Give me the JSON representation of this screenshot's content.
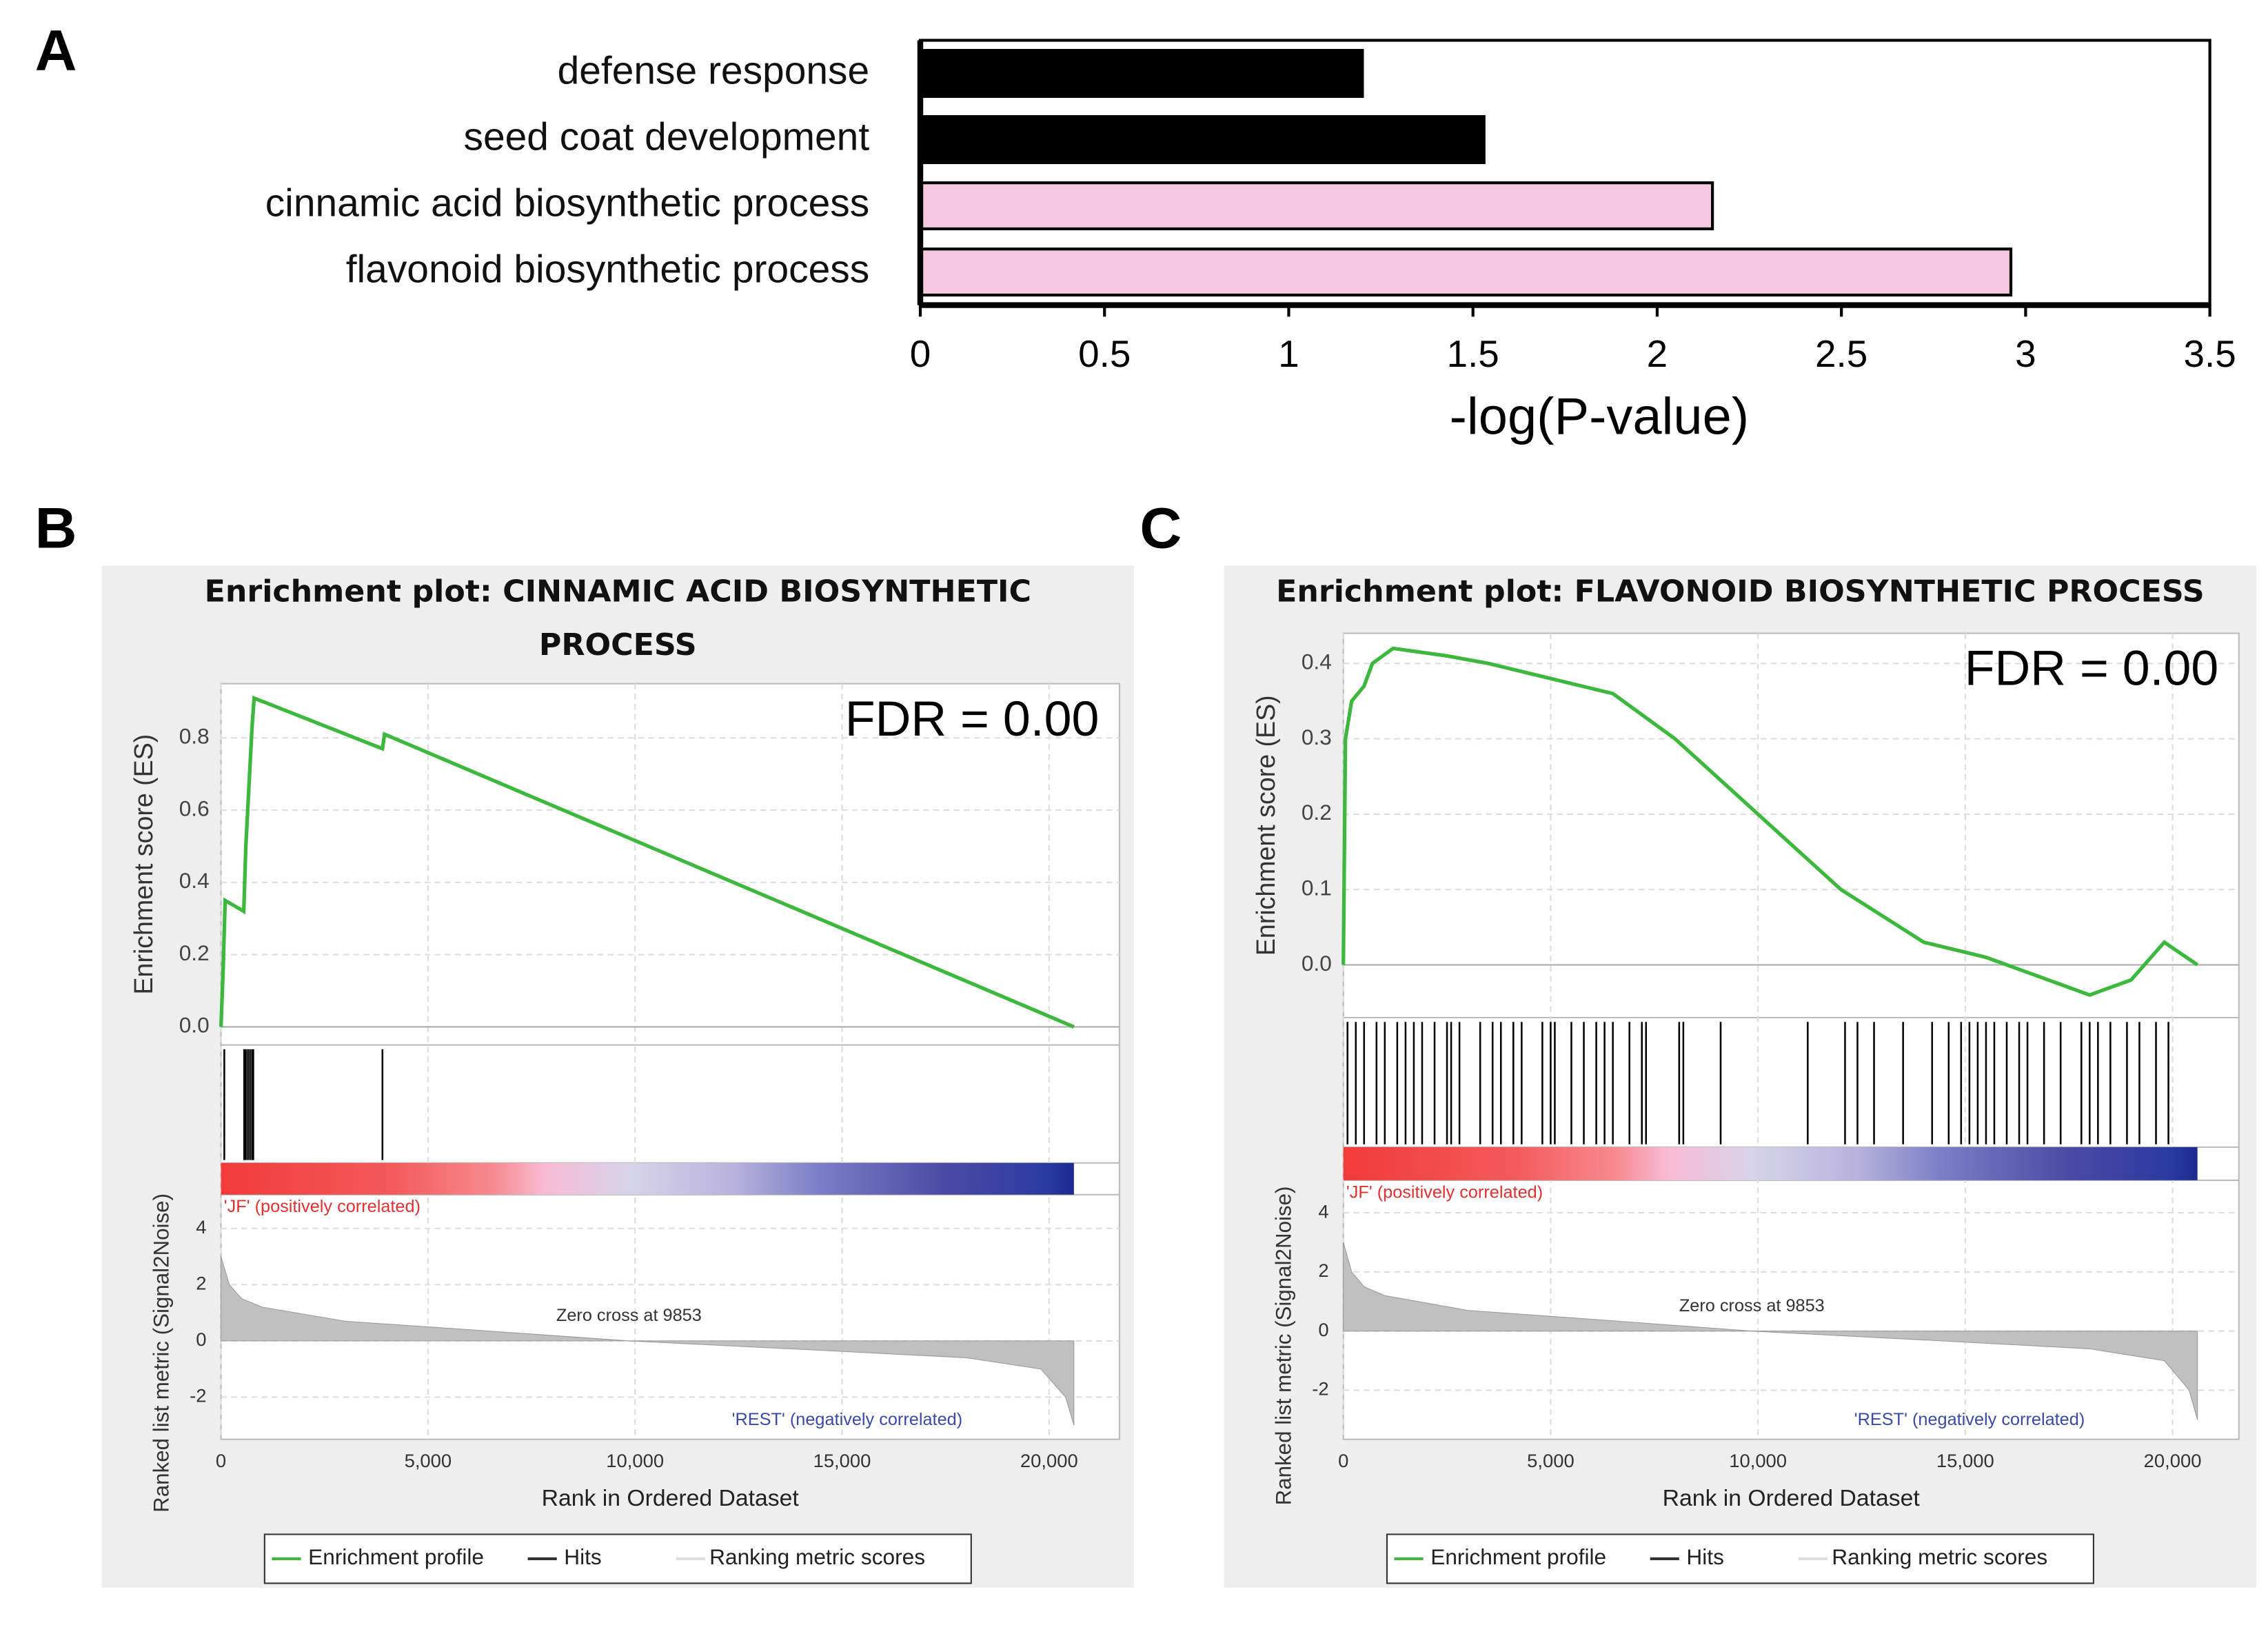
{
  "chart_data": [
    {
      "type": "bar",
      "panel": "A",
      "orientation": "horizontal",
      "categories": [
        "defense response",
        "seed coat development",
        "cinnamic acid biosynthetic process",
        "flavonoid biosynthetic process"
      ],
      "values": [
        1.2,
        1.53,
        2.15,
        2.96
      ],
      "colors": [
        "#000000",
        "#000000",
        "#f4c8e0",
        "#f4c8e0"
      ],
      "x_label": "-log(P-value)",
      "xlim": [
        0,
        3.5
      ],
      "xticks": [
        0,
        0.5,
        1,
        1.5,
        2,
        2.5,
        3,
        3.5
      ]
    },
    {
      "type": "enrichment",
      "panel": "B",
      "title": "Enrichment plot: CINNAMIC ACID BIOSYNTHETIC PROCESS",
      "annotation": "FDR = 0.00",
      "y_label": "Enrichment score (ES)",
      "metric_label": "Ranked list metric (Signal2Noise)",
      "x_label": "Rank in Ordered Dataset",
      "positive_label": "'JF' (positively correlated)",
      "negative_label": "'REST' (negatively correlated)",
      "zero_cross_label": "Zero cross at 9853",
      "legend": [
        "Enrichment profile",
        "Hits",
        "Ranking metric scores"
      ],
      "color": "#3cb83c",
      "hit_color": "#000000",
      "metric_color": "#c0c0c0",
      "grid": true,
      "x": [
        0,
        50,
        100,
        550,
        600,
        700,
        750,
        800,
        3900,
        3950,
        20600
      ],
      "values": [
        0,
        0.15,
        0.35,
        0.32,
        0.5,
        0.72,
        0.83,
        0.91,
        0.77,
        0.81,
        0
      ],
      "hits": [
        80,
        560,
        600,
        650,
        700,
        750,
        780,
        3900
      ],
      "metric_x": [
        0,
        200,
        500,
        1000,
        3000,
        6000,
        9853,
        14000,
        18000,
        19800,
        20400,
        20600
      ],
      "metric_values": [
        3,
        2,
        1.5,
        1.2,
        0.7,
        0.4,
        0,
        -0.3,
        -0.6,
        -1,
        -2,
        -3
      ],
      "xlim": [
        0,
        21700
      ],
      "xticks": [
        0,
        {
          "value": 5000,
          "label": "5,000"
        },
        {
          "value": 10000,
          "label": "10,000"
        },
        {
          "value": 15000,
          "label": "15,000"
        },
        {
          "value": 20000,
          "label": "20,000"
        }
      ],
      "ylim": [
        -0.05,
        0.95
      ],
      "yticks": [
        {
          "value": 0,
          "label": "0.0"
        },
        0.2,
        0.4,
        0.6,
        0.8
      ],
      "metric_ylim": [
        -3.5,
        5.2
      ],
      "metric_yticks": [
        -2,
        0,
        2,
        4
      ]
    },
    {
      "type": "enrichment",
      "panel": "C",
      "title": "Enrichment plot: FLAVONOID BIOSYNTHETIC PROCESS",
      "annotation": "FDR = 0.00",
      "y_label": "Enrichment score (ES)",
      "metric_label": "Ranked list metric (Signal2Noise)",
      "x_label": "Rank in Ordered Dataset",
      "positive_label": "'JF' (positively correlated)",
      "negative_label": "'REST' (negatively correlated)",
      "zero_cross_label": "Zero cross at 9853",
      "legend": [
        "Enrichment profile",
        "Hits",
        "Ranking metric scores"
      ],
      "color": "#3cb83c",
      "hit_color": "#000000",
      "metric_color": "#c0c0c0",
      "grid": true,
      "x": [
        0,
        50,
        200,
        500,
        700,
        1200,
        2500,
        3500,
        5000,
        6500,
        8000,
        10000,
        12000,
        14000,
        15500,
        17000,
        18000,
        19000,
        19800,
        20600
      ],
      "values": [
        0,
        0.3,
        0.35,
        0.37,
        0.4,
        0.42,
        0.41,
        0.4,
        0.38,
        0.36,
        0.3,
        0.2,
        0.1,
        0.03,
        0.01,
        -0.02,
        -0.04,
        -0.02,
        0.03,
        0
      ],
      "hits": [
        100,
        300,
        500,
        800,
        1000,
        1300,
        1500,
        1700,
        1900,
        2200,
        2500,
        2600,
        2800,
        3300,
        3600,
        3800,
        4100,
        4300,
        4800,
        5000,
        5100,
        5500,
        5800,
        6100,
        6300,
        6500,
        6900,
        7200,
        7300,
        8100,
        8200,
        9100,
        11200,
        12100,
        12400,
        12800,
        13500,
        14200,
        14600,
        14900,
        15100,
        15300,
        15500,
        15700,
        16000,
        16300,
        16500,
        16900,
        17300,
        17800,
        18000,
        18200,
        18500,
        18900,
        19200,
        19600,
        19900
      ],
      "metric_x": [
        0,
        200,
        500,
        1000,
        3000,
        6000,
        9853,
        14000,
        18000,
        19800,
        20400,
        20600
      ],
      "metric_values": [
        3,
        2,
        1.5,
        1.2,
        0.7,
        0.4,
        0,
        -0.3,
        -0.6,
        -1,
        -2,
        -3
      ],
      "xlim": [
        0,
        21600
      ],
      "xticks": [
        0,
        {
          "value": 5000,
          "label": "5,000"
        },
        {
          "value": 10000,
          "label": "10,000"
        },
        {
          "value": 15000,
          "label": "15,000"
        },
        {
          "value": 20000,
          "label": "20,000"
        }
      ],
      "ylim": [
        -0.07,
        0.44
      ],
      "yticks": [
        {
          "value": 0,
          "label": "0.0"
        },
        0.1,
        0.2,
        0.3,
        0.4
      ],
      "metric_ylim": [
        -3.66,
        5.1
      ],
      "metric_yticks": [
        -2,
        0,
        2,
        4
      ]
    }
  ]
}
